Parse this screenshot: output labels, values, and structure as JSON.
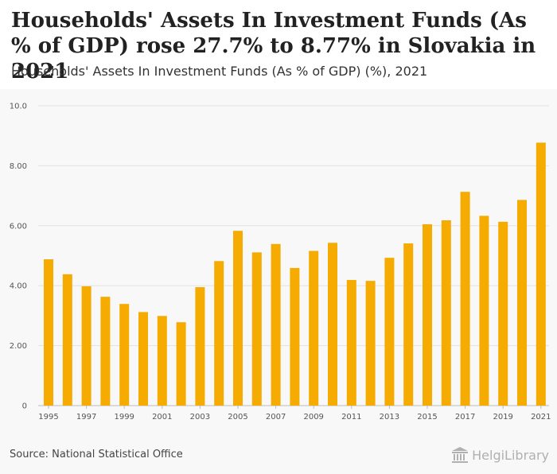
{
  "header": {
    "title": "Households' Assets In Investment Funds (As % of GDP) rose 27.7% to 8.77% in Slovakia in 2021",
    "subtitle": "Households' Assets In Investment Funds (As % of GDP) (%), 2021"
  },
  "footer": {
    "source": "Source: National Statistical Office",
    "brand": "HelgiLibrary"
  },
  "colors": {
    "bar": "#f5ab00",
    "grid": "#e2e2e2"
  },
  "chart_data": {
    "type": "bar",
    "title": "Households' Assets In Investment Funds (As % of GDP) (%), 2021",
    "xlabel": "",
    "ylabel": "",
    "ylim": [
      0,
      10
    ],
    "y_ticks": [
      0,
      2,
      4,
      6,
      8,
      10
    ],
    "y_tick_labels": [
      "0",
      "2.00",
      "4.00",
      "6.00",
      "8.00",
      "10.0"
    ],
    "categories": [
      "1995",
      "1996",
      "1997",
      "1998",
      "1999",
      "2000",
      "2001",
      "2002",
      "2003",
      "2004",
      "2005",
      "2006",
      "2007",
      "2008",
      "2009",
      "2010",
      "2011",
      "2012",
      "2013",
      "2014",
      "2015",
      "2016",
      "2017",
      "2018",
      "2019",
      "2020",
      "2021"
    ],
    "x_tick_labels": [
      "1995",
      "1997",
      "1999",
      "2001",
      "2003",
      "2005",
      "2007",
      "2009",
      "2011",
      "2013",
      "2015",
      "2017",
      "2019",
      "2021"
    ],
    "values": [
      4.88,
      4.38,
      3.98,
      3.63,
      3.39,
      3.12,
      2.99,
      2.78,
      3.95,
      4.82,
      5.83,
      5.11,
      5.39,
      4.59,
      5.16,
      5.43,
      4.19,
      4.16,
      4.93,
      5.41,
      6.05,
      6.18,
      7.13,
      6.33,
      6.13,
      6.86,
      8.77
    ],
    "grid": true,
    "legend": "none"
  }
}
